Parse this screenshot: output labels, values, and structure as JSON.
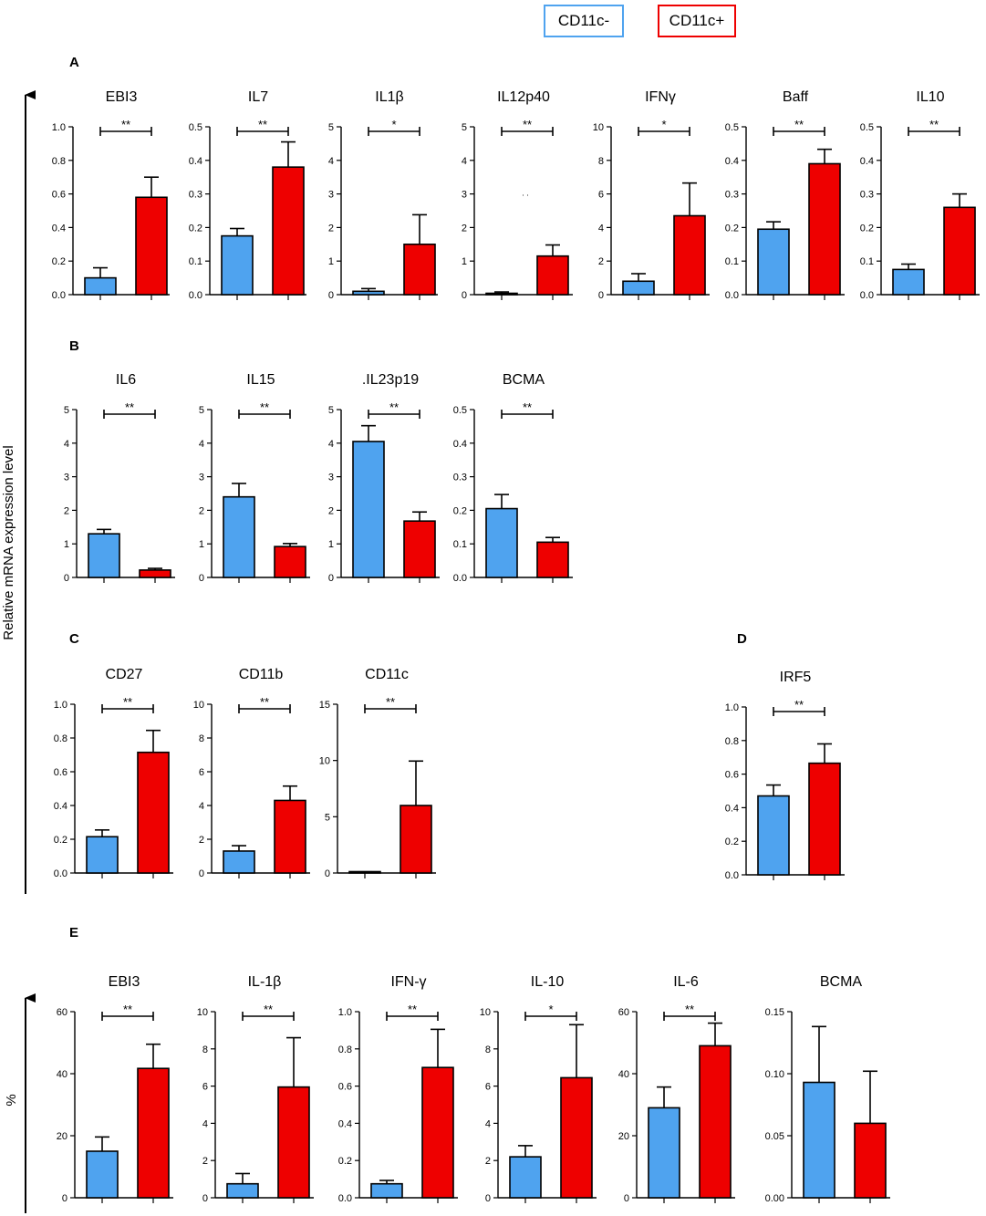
{
  "legend": {
    "neg": {
      "label": "CD11c-",
      "color": "#4fa3ef"
    },
    "pos": {
      "label": "CD11c+",
      "color": "#ee0000"
    }
  },
  "axis_labels": {
    "main_y": "Relative mRNA expression level",
    "e_y": "%"
  },
  "panel_labels": [
    "A",
    "B",
    "C",
    "D",
    "E"
  ],
  "chart_data": [
    {
      "type": "bar",
      "panel": "A",
      "title": "EBI3",
      "categories": [
        "CD11c-",
        "CD11c+"
      ],
      "values": [
        0.1,
        0.58
      ],
      "errors": [
        0.06,
        0.12
      ],
      "ylim": [
        0,
        1.0
      ],
      "ticks": [
        "0.0",
        "0.2",
        "0.4",
        "0.6",
        "0.8",
        "1.0"
      ],
      "significance": "**"
    },
    {
      "type": "bar",
      "panel": "A",
      "title": "IL7",
      "categories": [
        "CD11c-",
        "CD11c+"
      ],
      "values": [
        0.175,
        0.38
      ],
      "errors": [
        0.022,
        0.075
      ],
      "ylim": [
        0,
        0.5
      ],
      "ticks": [
        "0.0",
        "0.1",
        "0.2",
        "0.3",
        "0.4",
        "0.5"
      ],
      "significance": "**"
    },
    {
      "type": "bar",
      "panel": "A",
      "title": "IL1β",
      "categories": [
        "CD11c-",
        "CD11c+"
      ],
      "values": [
        0.1,
        1.5
      ],
      "errors": [
        0.08,
        0.88
      ],
      "ylim": [
        0,
        5
      ],
      "ticks": [
        "0",
        "1",
        "2",
        "3",
        "4",
        "5"
      ],
      "significance": "*"
    },
    {
      "type": "bar",
      "panel": "A",
      "title": "IL12p40",
      "categories": [
        "CD11c-",
        "CD11c+"
      ],
      "values": [
        0.03,
        1.15
      ],
      "errors": [
        0.05,
        0.33
      ],
      "ylim": [
        0,
        5
      ],
      "ticks": [
        "0",
        "1",
        "2",
        "3",
        "4",
        "5"
      ],
      "significance": "**",
      "note": ". ."
    },
    {
      "type": "bar",
      "panel": "A",
      "title": "IFNγ",
      "categories": [
        "CD11c-",
        "CD11c+"
      ],
      "values": [
        0.8,
        4.7
      ],
      "errors": [
        0.45,
        1.95
      ],
      "ylim": [
        0,
        10
      ],
      "ticks": [
        "0",
        "2",
        "4",
        "6",
        "8",
        "10"
      ],
      "significance": "*"
    },
    {
      "type": "bar",
      "panel": "A",
      "title": "Baff",
      "categories": [
        "CD11c-",
        "CD11c+"
      ],
      "values": [
        0.195,
        0.39
      ],
      "errors": [
        0.022,
        0.043
      ],
      "ylim": [
        0,
        0.5
      ],
      "ticks": [
        "0.0",
        "0.1",
        "0.2",
        "0.3",
        "0.4",
        "0.5"
      ],
      "significance": "**"
    },
    {
      "type": "bar",
      "panel": "A",
      "title": "IL10",
      "categories": [
        "CD11c-",
        "CD11c+"
      ],
      "values": [
        0.075,
        0.26
      ],
      "errors": [
        0.016,
        0.04
      ],
      "ylim": [
        0,
        0.5
      ],
      "ticks": [
        "0.0",
        "0.1",
        "0.2",
        "0.3",
        "0.4",
        "0.5"
      ],
      "significance": "**"
    },
    {
      "type": "bar",
      "panel": "B",
      "title": "IL6",
      "categories": [
        "CD11c-",
        "CD11c+"
      ],
      "values": [
        1.3,
        0.22
      ],
      "errors": [
        0.13,
        0.05
      ],
      "ylim": [
        0,
        5
      ],
      "ticks": [
        "0",
        "1",
        "2",
        "3",
        "4",
        "5"
      ],
      "significance": "**"
    },
    {
      "type": "bar",
      "panel": "B",
      "title": "IL15",
      "categories": [
        "CD11c-",
        "CD11c+"
      ],
      "values": [
        2.4,
        0.92
      ],
      "errors": [
        0.4,
        0.09
      ],
      "ylim": [
        0,
        5
      ],
      "ticks": [
        "0",
        "1",
        "2",
        "3",
        "4",
        "5"
      ],
      "significance": "**"
    },
    {
      "type": "bar",
      "panel": "B",
      "title": ".IL23p19",
      "categories": [
        "CD11c-",
        "CD11c+"
      ],
      "values": [
        4.05,
        1.68
      ],
      "errors": [
        0.47,
        0.27
      ],
      "ylim": [
        0,
        5
      ],
      "ticks": [
        "0",
        "1",
        "2",
        "3",
        "4",
        "5"
      ],
      "significance": "**"
    },
    {
      "type": "bar",
      "panel": "B",
      "title": "BCMA",
      "categories": [
        "CD11c-",
        "CD11c+"
      ],
      "values": [
        0.205,
        0.105
      ],
      "errors": [
        0.042,
        0.014
      ],
      "ylim": [
        0,
        0.5
      ],
      "ticks": [
        "0.0",
        "0.1",
        "0.2",
        "0.3",
        "0.4",
        "0.5"
      ],
      "significance": "**"
    },
    {
      "type": "bar",
      "panel": "C",
      "title": "CD27",
      "categories": [
        "CD11c-",
        "CD11c+"
      ],
      "values": [
        0.215,
        0.715
      ],
      "errors": [
        0.04,
        0.13
      ],
      "ylim": [
        0,
        1.0
      ],
      "ticks": [
        "0.0",
        "0.2",
        "0.4",
        "0.6",
        "0.8",
        "1.0"
      ],
      "significance": "**"
    },
    {
      "type": "bar",
      "panel": "C",
      "title": "CD11b",
      "categories": [
        "CD11c-",
        "CD11c+"
      ],
      "values": [
        1.3,
        4.3
      ],
      "errors": [
        0.32,
        0.85
      ],
      "ylim": [
        0,
        10
      ],
      "ticks": [
        "0",
        "2",
        "4",
        "6",
        "8",
        "10"
      ],
      "significance": "**"
    },
    {
      "type": "bar",
      "panel": "C",
      "title": "CD11c",
      "categories": [
        "CD11c-",
        "CD11c+"
      ],
      "values": [
        0.05,
        6.0
      ],
      "errors": [
        0.05,
        3.95
      ],
      "ylim": [
        0,
        15
      ],
      "ticks": [
        "0",
        "5",
        "10",
        "15"
      ],
      "significance": "**"
    },
    {
      "type": "bar",
      "panel": "D",
      "title": "IRF5",
      "categories": [
        "CD11c-",
        "CD11c+"
      ],
      "values": [
        0.47,
        0.665
      ],
      "errors": [
        0.065,
        0.115
      ],
      "ylim": [
        0,
        1.0
      ],
      "ticks": [
        "0.0",
        "0.2",
        "0.4",
        "0.6",
        "0.8",
        "1.0"
      ],
      "significance": "**"
    },
    {
      "type": "bar",
      "panel": "E",
      "title": "EBI3",
      "categories": [
        "CD11c-",
        "CD11c+"
      ],
      "values": [
        15.0,
        41.7
      ],
      "errors": [
        4.6,
        7.8
      ],
      "ylim": [
        0,
        60
      ],
      "ticks": [
        "0",
        "20",
        "40",
        "60"
      ],
      "significance": "**"
    },
    {
      "type": "bar",
      "panel": "E",
      "title": "IL-1β",
      "categories": [
        "CD11c-",
        "CD11c+"
      ],
      "values": [
        0.75,
        5.95
      ],
      "errors": [
        0.55,
        2.65
      ],
      "ylim": [
        0,
        10
      ],
      "ticks": [
        "0",
        "2",
        "4",
        "6",
        "8",
        "10"
      ],
      "significance": "**"
    },
    {
      "type": "bar",
      "panel": "E",
      "title": "IFN-γ",
      "categories": [
        "CD11c-",
        "CD11c+"
      ],
      "values": [
        0.075,
        0.7
      ],
      "errors": [
        0.018,
        0.205
      ],
      "ylim": [
        0,
        1.0
      ],
      "ticks": [
        "0.0",
        "0.2",
        "0.4",
        "0.6",
        "0.8",
        "1.0"
      ],
      "significance": "**"
    },
    {
      "type": "bar",
      "panel": "E",
      "title": "IL-10",
      "categories": [
        "CD11c-",
        "CD11c+"
      ],
      "values": [
        2.2,
        6.45
      ],
      "errors": [
        0.6,
        2.85
      ],
      "ylim": [
        0,
        10
      ],
      "ticks": [
        "0",
        "2",
        "4",
        "6",
        "8",
        "10"
      ],
      "significance": "*"
    },
    {
      "type": "bar",
      "panel": "E",
      "title": "IL-6",
      "categories": [
        "CD11c-",
        "CD11c+"
      ],
      "values": [
        29.0,
        49.0
      ],
      "errors": [
        6.7,
        7.3
      ],
      "ylim": [
        0,
        60
      ],
      "ticks": [
        "0",
        "20",
        "40",
        "60"
      ],
      "significance": "**"
    },
    {
      "type": "bar",
      "panel": "E",
      "title": "BCMA",
      "categories": [
        "CD11c-",
        "CD11c+"
      ],
      "values": [
        0.093,
        0.06
      ],
      "errors": [
        0.045,
        0.042
      ],
      "ylim": [
        0,
        0.15
      ],
      "ticks": [
        "0.00",
        "0.05",
        "0.10",
        "0.15"
      ],
      "significance": ""
    }
  ]
}
